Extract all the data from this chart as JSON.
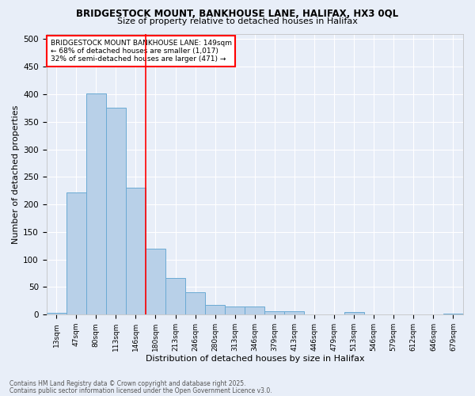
{
  "title1": "BRIDGESTOCK MOUNT, BANKHOUSE LANE, HALIFAX, HX3 0QL",
  "title2": "Size of property relative to detached houses in Halifax",
  "xlabel": "Distribution of detached houses by size in Halifax",
  "ylabel": "Number of detached properties",
  "categories": [
    "13sqm",
    "47sqm",
    "80sqm",
    "113sqm",
    "146sqm",
    "180sqm",
    "213sqm",
    "246sqm",
    "280sqm",
    "313sqm",
    "346sqm",
    "379sqm",
    "413sqm",
    "446sqm",
    "479sqm",
    "513sqm",
    "546sqm",
    "579sqm",
    "612sqm",
    "646sqm",
    "679sqm"
  ],
  "values": [
    3,
    222,
    401,
    376,
    230,
    120,
    67,
    40,
    17,
    15,
    14,
    6,
    6,
    1,
    1,
    5,
    1,
    0,
    0,
    1,
    2
  ],
  "bar_color": "#b8d0e8",
  "bar_edge_color": "#6aaad4",
  "fig_bg_color": "#e8eef8",
  "ax_bg_color": "#e8eef8",
  "red_line_x": 4.5,
  "annotation_text": "BRIDGESTOCK MOUNT BANKHOUSE LANE: 149sqm\n← 68% of detached houses are smaller (1,017)\n32% of semi-detached houses are larger (471) →",
  "annotation_box_color": "white",
  "annotation_box_edge": "red",
  "footer1": "Contains HM Land Registry data © Crown copyright and database right 2025.",
  "footer2": "Contains public sector information licensed under the Open Government Licence v3.0.",
  "ylim": [
    0,
    510
  ],
  "yticks": [
    0,
    50,
    100,
    150,
    200,
    250,
    300,
    350,
    400,
    450,
    500
  ]
}
